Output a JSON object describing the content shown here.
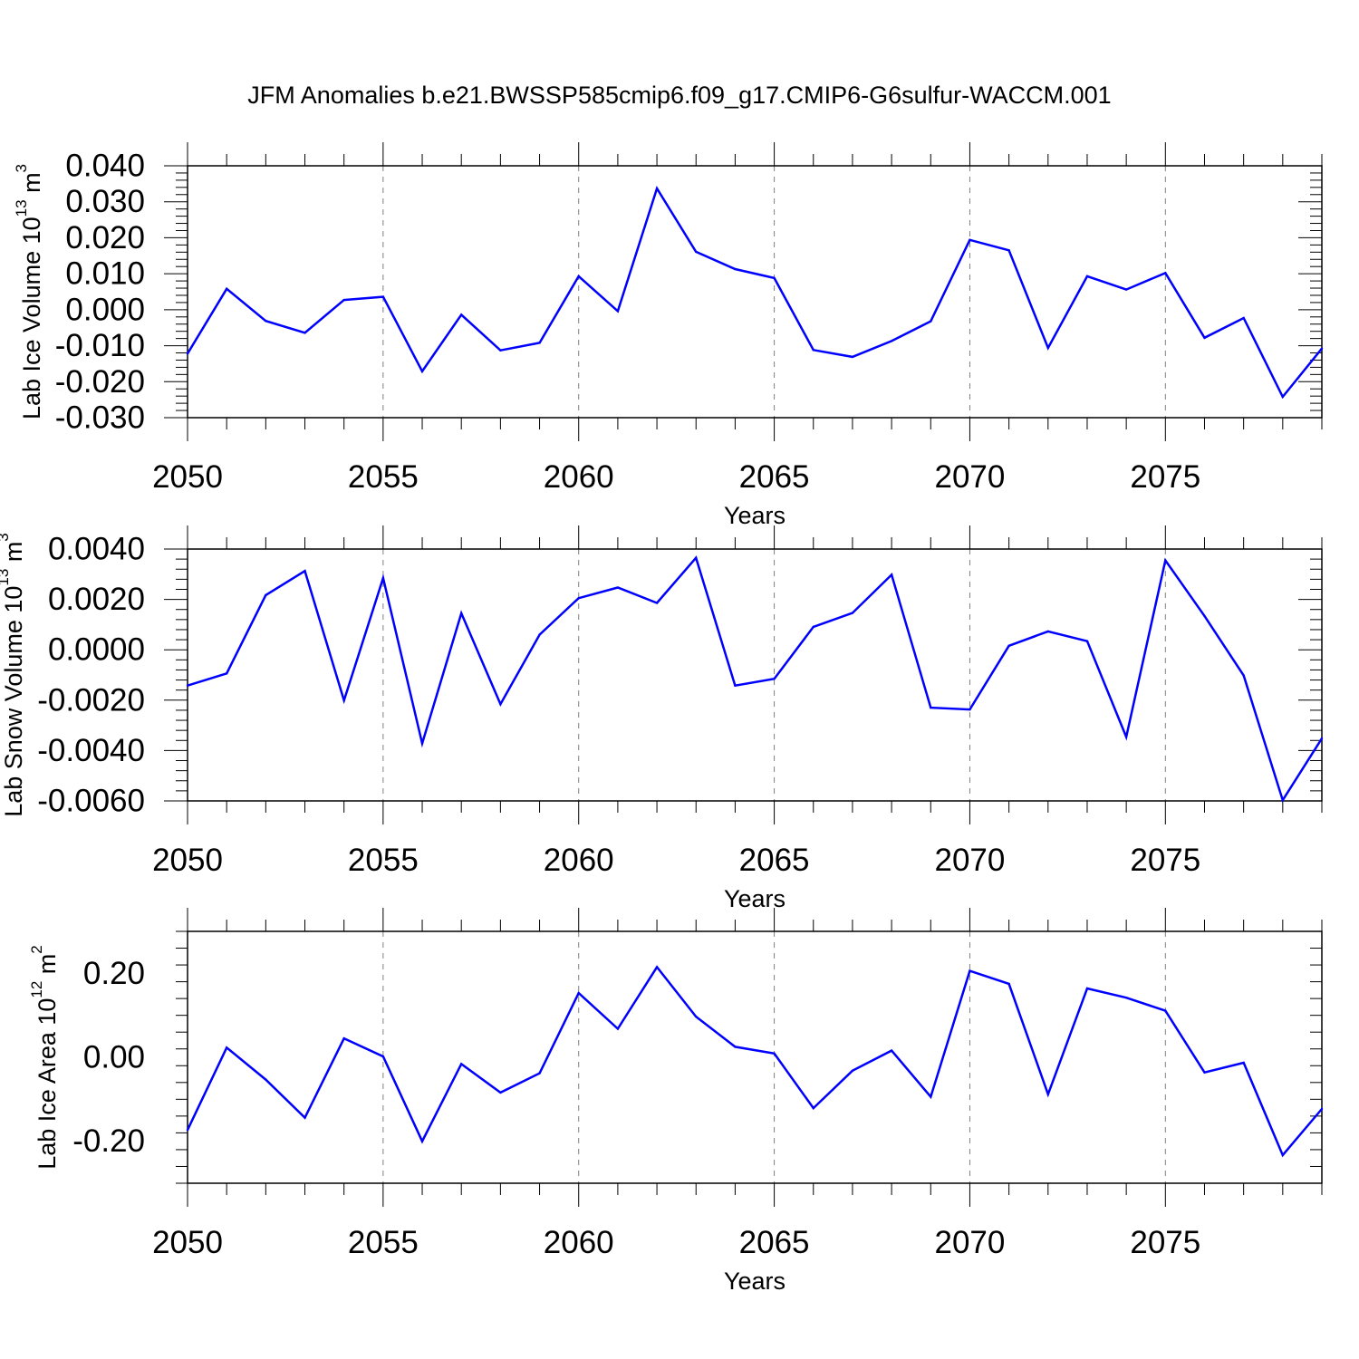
{
  "title": "JFM Anomalies b.e21.BWSSP585cmip6.f09_g17.CMIP6-G6sulfur-WACCM.001",
  "colors": {
    "line": "#0000ff",
    "axis": "#000000",
    "grid": "#808080"
  },
  "chart_data": [
    {
      "type": "line",
      "ylabel": {
        "text": "Lab Ice Volume 10",
        "sup1": "13",
        "unit": " m",
        "sup2": "3"
      },
      "xlabel": "Years",
      "xlim": [
        2050,
        2079
      ],
      "ylim": [
        -0.03,
        0.04
      ],
      "yticks": [
        -0.03,
        -0.02,
        -0.01,
        0.0,
        0.01,
        0.02,
        0.03,
        0.04
      ],
      "ytick_labels": [
        "-0.030",
        "-0.020",
        "-0.010",
        "0.000",
        "0.010",
        "0.020",
        "0.030",
        "0.040"
      ],
      "xticks": [
        2050,
        2055,
        2060,
        2065,
        2070,
        2075
      ],
      "xtick_labels": [
        "2050",
        "2055",
        "2060",
        "2065",
        "2070",
        "2075"
      ],
      "grid": "vertical dashed at major x ticks",
      "x": [
        2050,
        2051,
        2052,
        2053,
        2054,
        2055,
        2056,
        2057,
        2058,
        2059,
        2060,
        2061,
        2062,
        2063,
        2064,
        2065,
        2066,
        2067,
        2068,
        2069,
        2070,
        2071,
        2072,
        2073,
        2074,
        2075,
        2076,
        2077,
        2078,
        2079
      ],
      "values": [
        -0.0122,
        0.0058,
        -0.0031,
        -0.0064,
        0.0027,
        0.0036,
        -0.0171,
        -0.0014,
        -0.0113,
        -0.0092,
        0.0093,
        -0.0004,
        0.0337,
        0.0161,
        0.0113,
        0.0088,
        -0.0112,
        -0.0131,
        -0.0087,
        -0.0032,
        0.0194,
        0.0165,
        -0.0106,
        0.0093,
        0.0056,
        0.0102,
        -0.0078,
        -0.0023,
        -0.0242,
        -0.0108
      ]
    },
    {
      "type": "line",
      "ylabel": {
        "text": "Lab Snow Volume 10",
        "sup1": "13",
        "unit": " m",
        "sup2": "3"
      },
      "xlabel": "Years",
      "xlim": [
        2050,
        2079
      ],
      "ylim": [
        -0.006,
        0.004
      ],
      "yticks": [
        -0.006,
        -0.004,
        -0.002,
        0.0,
        0.002,
        0.004
      ],
      "ytick_labels": [
        "-0.0060",
        "-0.0040",
        "-0.0020",
        "0.0000",
        "0.0020",
        "0.0040"
      ],
      "xticks": [
        2050,
        2055,
        2060,
        2065,
        2070,
        2075
      ],
      "xtick_labels": [
        "2050",
        "2055",
        "2060",
        "2065",
        "2070",
        "2075"
      ],
      "grid": "vertical dashed at major x ticks",
      "x": [
        2050,
        2051,
        2052,
        2053,
        2054,
        2055,
        2056,
        2057,
        2058,
        2059,
        2060,
        2061,
        2062,
        2063,
        2064,
        2065,
        2066,
        2067,
        2068,
        2069,
        2070,
        2071,
        2072,
        2073,
        2074,
        2075,
        2076,
        2077,
        2078,
        2079
      ],
      "values": [
        -0.00142,
        -0.00094,
        0.00217,
        0.00313,
        -0.00201,
        0.00285,
        -0.00372,
        0.00145,
        -0.00216,
        0.0006,
        0.00205,
        0.00247,
        0.00186,
        0.00365,
        -0.00142,
        -0.00115,
        0.00091,
        0.00146,
        0.00298,
        -0.0023,
        -0.00237,
        0.00016,
        0.00073,
        0.00034,
        -0.00346,
        0.00355,
        0.00134,
        -0.00102,
        -0.00597,
        -0.00352
      ]
    },
    {
      "type": "line",
      "ylabel": {
        "text": "Lab Ice Area 10",
        "sup1": "12",
        "unit": " m",
        "sup2": "2"
      },
      "xlabel": "Years",
      "xlim": [
        2050,
        2079
      ],
      "ylim": [
        -0.3,
        0.3
      ],
      "yticks": [
        -0.2,
        0.0,
        0.2
      ],
      "ytick_labels": [
        "-0.20",
        "0.00",
        "0.20"
      ],
      "xticks": [
        2050,
        2055,
        2060,
        2065,
        2070,
        2075
      ],
      "xtick_labels": [
        "2050",
        "2055",
        "2060",
        "2065",
        "2070",
        "2075"
      ],
      "grid": "vertical dashed at major x ticks",
      "x": [
        2050,
        2051,
        2052,
        2053,
        2054,
        2055,
        2056,
        2057,
        2058,
        2059,
        2060,
        2061,
        2062,
        2063,
        2064,
        2065,
        2066,
        2067,
        2068,
        2069,
        2070,
        2071,
        2072,
        2073,
        2074,
        2075,
        2076,
        2077,
        2078,
        2079
      ],
      "values": [
        -0.173,
        0.023,
        -0.053,
        -0.144,
        0.045,
        0.002,
        -0.2,
        -0.016,
        -0.084,
        -0.038,
        0.153,
        0.068,
        0.215,
        0.097,
        0.025,
        0.009,
        -0.121,
        -0.032,
        0.016,
        -0.094,
        0.206,
        0.175,
        -0.088,
        0.164,
        0.142,
        0.111,
        -0.036,
        -0.013,
        -0.233,
        -0.123
      ]
    }
  ]
}
